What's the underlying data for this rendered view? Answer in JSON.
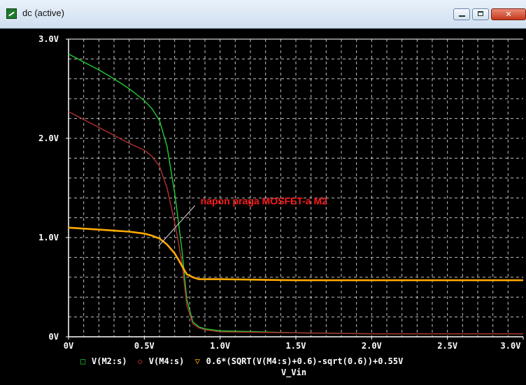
{
  "window": {
    "title": "dc (active)",
    "minimize_glyph": "",
    "maximize_glyph": "",
    "close_glyph": "✕"
  },
  "colors": {
    "background": "#000000",
    "axis": "#ffffff",
    "grid": "#ffffff",
    "annotation": "#ff1a1a",
    "m2": "#22cc33",
    "m4": "#b03030",
    "threshold": "#ffaa00"
  },
  "chart_data": {
    "type": "line",
    "title": "",
    "xlabel": "V_Vin",
    "ylabel": "",
    "xlim": [
      0,
      3.0
    ],
    "ylim": [
      0,
      3.0
    ],
    "x_ticks": [
      {
        "value": 0,
        "label": "0V"
      },
      {
        "value": 0.5,
        "label": "0.5V"
      },
      {
        "value": 1.0,
        "label": "1.0V"
      },
      {
        "value": 1.5,
        "label": "1.5V"
      },
      {
        "value": 2.0,
        "label": "2.0V"
      },
      {
        "value": 2.5,
        "label": "2.5V"
      },
      {
        "value": 3.0,
        "label": "3.0V"
      }
    ],
    "y_ticks": [
      {
        "value": 0,
        "label": "0V"
      },
      {
        "value": 1.0,
        "label": "1.0V"
      },
      {
        "value": 2.0,
        "label": "2.0V"
      },
      {
        "value": 3.0,
        "label": "3.0V"
      }
    ],
    "grid": true,
    "series": [
      {
        "name": "V(M2:s)",
        "marker": "□",
        "color": "#22cc33",
        "x": [
          0,
          0.1,
          0.2,
          0.3,
          0.4,
          0.5,
          0.55,
          0.6,
          0.65,
          0.7,
          0.72,
          0.75,
          0.78,
          0.82,
          0.86,
          0.9,
          1.0,
          1.5,
          2.0,
          2.5,
          3.0
        ],
        "y": [
          2.85,
          2.77,
          2.69,
          2.6,
          2.5,
          2.38,
          2.3,
          2.18,
          1.92,
          1.45,
          1.22,
          0.85,
          0.38,
          0.15,
          0.1,
          0.08,
          0.06,
          0.04,
          0.03,
          0.03,
          0.03
        ]
      },
      {
        "name": "V(M4:s)",
        "marker": "◇",
        "color": "#b03030",
        "x": [
          0,
          0.1,
          0.2,
          0.3,
          0.4,
          0.5,
          0.55,
          0.6,
          0.65,
          0.7,
          0.72,
          0.75,
          0.78,
          0.82,
          0.86,
          0.9,
          1.0,
          1.5,
          2.0,
          2.5,
          3.0
        ],
        "y": [
          2.27,
          2.19,
          2.11,
          2.03,
          1.95,
          1.88,
          1.82,
          1.72,
          1.5,
          1.15,
          1.0,
          0.72,
          0.32,
          0.13,
          0.09,
          0.07,
          0.05,
          0.04,
          0.03,
          0.03,
          0.03
        ]
      },
      {
        "name": "0.6*(SQRT(V(M4:s)+0.6)-sqrt(0.6))+0.55V",
        "marker": "▽",
        "color": "#ffaa00",
        "x": [
          0,
          0.1,
          0.2,
          0.3,
          0.4,
          0.5,
          0.55,
          0.6,
          0.65,
          0.7,
          0.72,
          0.75,
          0.78,
          0.82,
          0.86,
          0.9,
          1.0,
          1.5,
          2.0,
          2.5,
          3.0
        ],
        "y": [
          1.1,
          1.09,
          1.08,
          1.07,
          1.06,
          1.04,
          1.02,
          0.99,
          0.93,
          0.84,
          0.79,
          0.71,
          0.63,
          0.6,
          0.58,
          0.58,
          0.58,
          0.57,
          0.57,
          0.57,
          0.57
        ]
      }
    ],
    "annotations": [
      {
        "text": "napon praga MOSFET-a M2",
        "x": 0.64,
        "y": 0.97
      }
    ]
  }
}
